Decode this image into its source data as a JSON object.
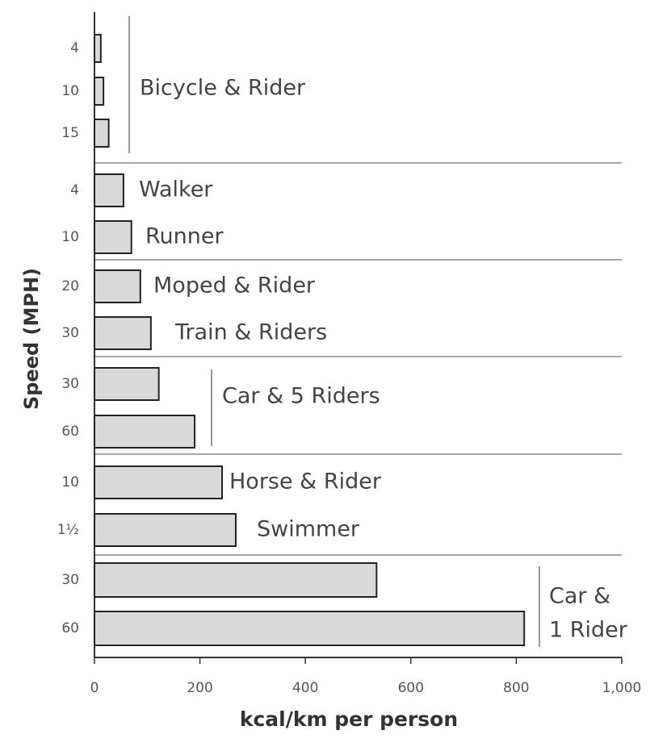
{
  "chart_data": {
    "type": "hbar",
    "xlabel": "kcal/km per person",
    "ylabel": "Speed (MPH)",
    "categories": [
      "4",
      "10",
      "15",
      "4",
      "10",
      "20",
      "30",
      "30",
      "60",
      "10",
      "1½",
      "30",
      "60"
    ],
    "values": [
      12,
      17,
      27,
      55,
      70,
      87,
      107,
      122,
      190,
      242,
      268,
      535,
      815
    ],
    "color": "#d9d9d9",
    "xlim": [
      0,
      1000
    ],
    "xticks": [
      0,
      200,
      400,
      600,
      800,
      {
        "value": 1000,
        "label": "1,000"
      }
    ],
    "annotations": [
      "Bicycle & Rider",
      "Walker",
      "Runner",
      "Moped & Rider",
      "Train & Riders",
      "Car & 5 Riders",
      "Horse & Rider",
      "Swimmer",
      "Car &",
      "1 Rider"
    ]
  }
}
